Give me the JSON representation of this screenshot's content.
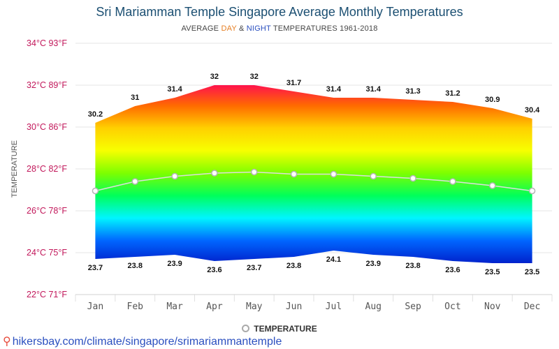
{
  "header": {
    "title": "Sri Mariamman Temple Singapore Average Monthly Temperatures",
    "subtitle_pre": "AVERAGE ",
    "subtitle_day": "DAY",
    "subtitle_mid": " & ",
    "subtitle_night": "NIGHT",
    "subtitle_post": " TEMPERATURES 1961-2018"
  },
  "legend": {
    "label": "TEMPERATURE"
  },
  "footer": {
    "link": "hikersbay.com/climate/singapore/srimariammantemple",
    "pin_icon": "location-pin-icon"
  },
  "chart_data": {
    "type": "area",
    "title": "Sri Mariamman Temple Singapore Average Monthly Temperatures",
    "subtitle": "AVERAGE DAY & NIGHT TEMPERATURES 1961-2018",
    "ylabel": "TEMPERATURE",
    "xlabel": "",
    "categories": [
      "Jan",
      "Feb",
      "Mar",
      "Apr",
      "May",
      "Jun",
      "Jul",
      "Aug",
      "Sep",
      "Oct",
      "Nov",
      "Dec"
    ],
    "ylim": [
      22,
      34
    ],
    "yticks": [
      {
        "value": 34,
        "label": "34°C 93°F"
      },
      {
        "value": 32,
        "label": "32°C 89°F"
      },
      {
        "value": 30,
        "label": "30°C 86°F"
      },
      {
        "value": 28,
        "label": "28°C 82°F"
      },
      {
        "value": 26,
        "label": "26°C 78°F"
      },
      {
        "value": 24,
        "label": "24°C 75°F"
      },
      {
        "value": 22,
        "label": "22°C 71°F"
      }
    ],
    "series": [
      {
        "name": "DAY",
        "values": [
          30.2,
          31,
          31.4,
          32,
          32,
          31.7,
          31.4,
          31.4,
          31.3,
          31.2,
          30.9,
          30.4
        ]
      },
      {
        "name": "NIGHT",
        "values": [
          23.7,
          23.8,
          23.9,
          23.6,
          23.7,
          23.8,
          24.1,
          23.9,
          23.8,
          23.6,
          23.5,
          23.5
        ]
      },
      {
        "name": "TEMPERATURE",
        "values": [
          26.95,
          27.4,
          27.65,
          27.8,
          27.85,
          27.75,
          27.75,
          27.65,
          27.55,
          27.4,
          27.2,
          26.95
        ]
      }
    ],
    "grid": true,
    "legend_position": "bottom-center",
    "colors": {
      "tick_label": "#c2185b",
      "average_line": "#dddddd",
      "gradient": [
        "#ff0a54",
        "#ff6a00",
        "#ffd000",
        "#f7ff00",
        "#7dff00",
        "#00ff5a",
        "#00f5ff",
        "#0066ff",
        "#0022cc"
      ]
    }
  }
}
